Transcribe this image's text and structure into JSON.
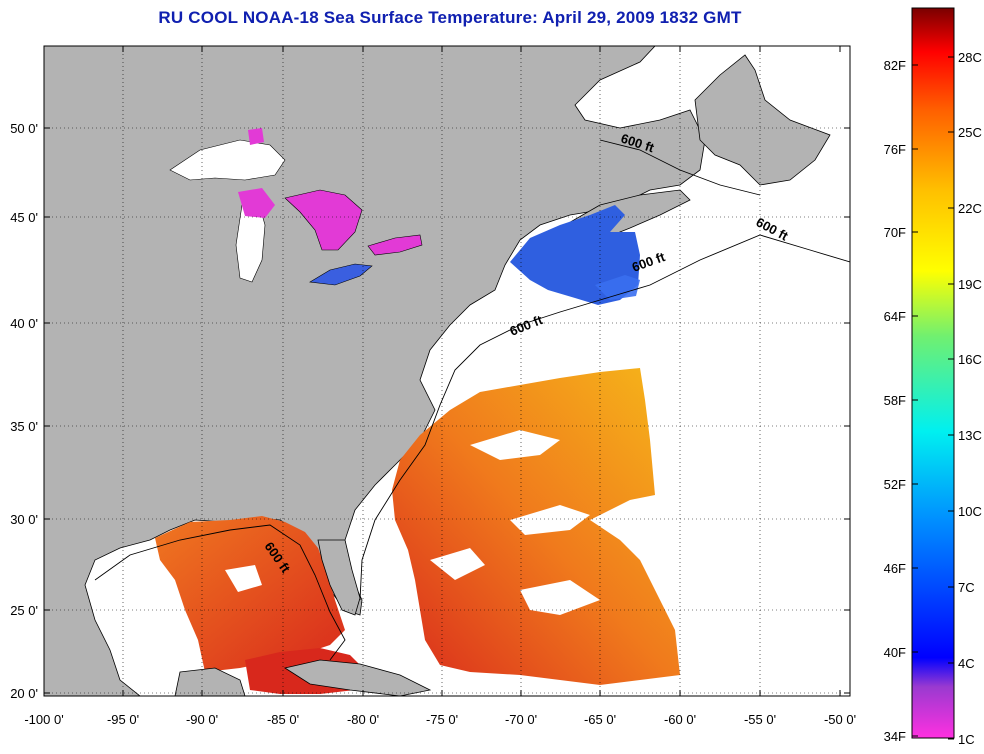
{
  "title": "RU COOL  NOAA-18  Sea Surface Temperature:  April 29, 2009 1832 GMT",
  "axes": {
    "lon_labels": [
      "-100 0'",
      "-95 0'",
      "-90 0'",
      "-85 0'",
      "-80 0'",
      "-75 0'",
      "-70 0'",
      "-65 0'",
      "-60 0'",
      "-55 0'",
      "-50 0'"
    ],
    "lat_labels": [
      "20 0'",
      "25 0'",
      "30 0'",
      "35 0'",
      "40 0'",
      "45 0'",
      "50 0'"
    ]
  },
  "contour_label": "600 ft",
  "colorbar": {
    "f_labels": [
      "82F",
      "76F",
      "70F",
      "64F",
      "58F",
      "52F",
      "46F",
      "40F",
      "34F"
    ],
    "c_labels": [
      "28C",
      "25C",
      "22C",
      "19C",
      "16C",
      "13C",
      "10C",
      "7C",
      "4C",
      "1C"
    ]
  },
  "colors": {
    "land": "#b3b3b3",
    "title": "#1020b0",
    "cold_lake": "#e23ad6",
    "cold_water": "#2a5be0",
    "warm_water": "#ef6a1c",
    "hot_water": "#d8201c"
  }
}
